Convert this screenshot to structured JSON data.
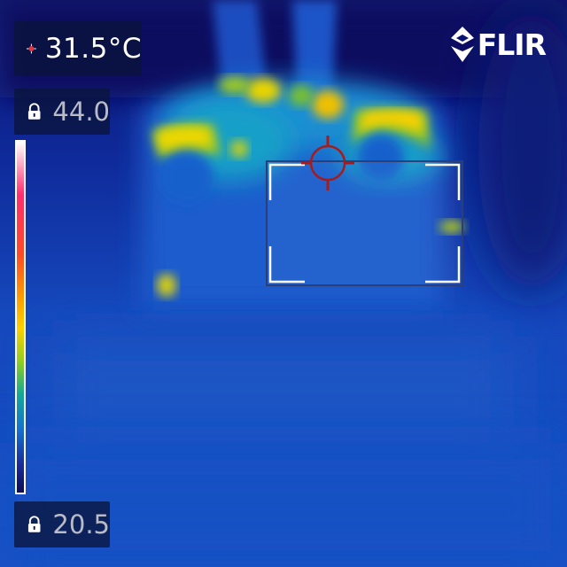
{
  "brand": {
    "logo_text": "FLIR"
  },
  "readouts": {
    "spot_temperature": "31.5°C",
    "scale_max": "44.0",
    "scale_min": "20.5"
  },
  "icons": {
    "spot": "crosshair-icon",
    "max_lock": "lock-icon",
    "min_lock": "lock-icon",
    "logo": "flir-logo-icon"
  },
  "colors": {
    "spot_marker": "#a61b1b",
    "overlay_panel": "#0a143c",
    "background": "#0a1a7a"
  }
}
